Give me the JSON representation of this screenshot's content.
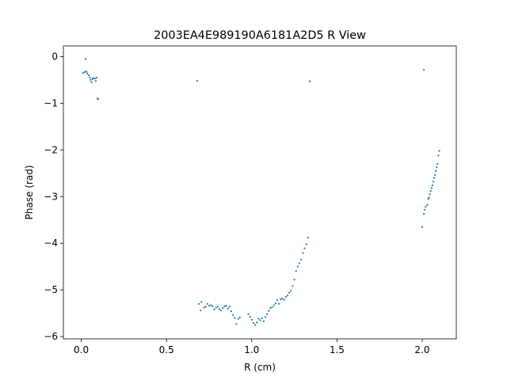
{
  "chart_data": {
    "type": "scatter",
    "title": "2003EA4E989190A6181A2D5 R View",
    "xlabel": "R (cm)",
    "ylabel": "Phase (rad)",
    "xlim": [
      -0.105,
      2.2
    ],
    "ylim": [
      -6.05,
      0.23
    ],
    "xticks": [
      0.0,
      0.5,
      1.0,
      1.5,
      2.0
    ],
    "xtick_labels": [
      "0.0",
      "0.5",
      "1.0",
      "1.5",
      "2.0"
    ],
    "yticks": [
      0,
      -1,
      -2,
      -3,
      -4,
      -5,
      -6
    ],
    "ytick_labels": [
      "0",
      "−1",
      "−2",
      "−3",
      "−4",
      "−5",
      "−6"
    ],
    "grid": false,
    "marker_color": "#1f77b4",
    "series": [
      {
        "points": [
          [
            0.01,
            -0.35
          ],
          [
            0.02,
            -0.33
          ],
          [
            0.025,
            -0.05
          ],
          [
            0.03,
            -0.32
          ],
          [
            0.035,
            -0.36
          ],
          [
            0.045,
            -0.4
          ],
          [
            0.05,
            -0.45
          ],
          [
            0.055,
            -0.5
          ],
          [
            0.06,
            -0.55
          ],
          [
            0.065,
            -0.48
          ],
          [
            0.07,
            -0.46
          ],
          [
            0.08,
            -0.47
          ],
          [
            0.085,
            -0.52
          ],
          [
            0.09,
            -0.45
          ],
          [
            0.095,
            -0.9
          ],
          [
            0.1,
            -0.91
          ],
          [
            0.68,
            -0.52
          ],
          [
            1.34,
            -0.53
          ],
          [
            2.01,
            -0.28
          ],
          [
            0.69,
            -5.3
          ],
          [
            0.7,
            -5.44
          ],
          [
            0.705,
            -5.26
          ],
          [
            0.72,
            -5.38
          ],
          [
            0.73,
            -5.36
          ],
          [
            0.74,
            -5.3
          ],
          [
            0.75,
            -5.34
          ],
          [
            0.76,
            -5.33
          ],
          [
            0.77,
            -5.35
          ],
          [
            0.78,
            -5.42
          ],
          [
            0.79,
            -5.38
          ],
          [
            0.8,
            -5.36
          ],
          [
            0.81,
            -5.41
          ],
          [
            0.82,
            -5.44
          ],
          [
            0.83,
            -5.39
          ],
          [
            0.84,
            -5.35
          ],
          [
            0.85,
            -5.34
          ],
          [
            0.86,
            -5.4
          ],
          [
            0.87,
            -5.36
          ],
          [
            0.88,
            -5.46
          ],
          [
            0.89,
            -5.54
          ],
          [
            0.9,
            -5.6
          ],
          [
            0.91,
            -5.73
          ],
          [
            0.92,
            -5.62
          ],
          [
            0.93,
            -5.59
          ],
          [
            0.98,
            -5.52
          ],
          [
            0.99,
            -5.58
          ],
          [
            1.0,
            -5.64
          ],
          [
            1.01,
            -5.71
          ],
          [
            1.02,
            -5.75
          ],
          [
            1.03,
            -5.7
          ],
          [
            1.04,
            -5.62
          ],
          [
            1.05,
            -5.65
          ],
          [
            1.06,
            -5.61
          ],
          [
            1.07,
            -5.67
          ],
          [
            1.08,
            -5.58
          ],
          [
            1.09,
            -5.52
          ],
          [
            1.1,
            -5.45
          ],
          [
            1.11,
            -5.39
          ],
          [
            1.12,
            -5.37
          ],
          [
            1.13,
            -5.33
          ],
          [
            1.14,
            -5.29
          ],
          [
            1.15,
            -5.22
          ],
          [
            1.16,
            -5.3
          ],
          [
            1.17,
            -5.2
          ],
          [
            1.18,
            -5.19
          ],
          [
            1.19,
            -5.21
          ],
          [
            1.2,
            -5.15
          ],
          [
            1.21,
            -5.12
          ],
          [
            1.22,
            -5.06
          ],
          [
            1.23,
            -5.02
          ],
          [
            1.24,
            -4.92
          ],
          [
            1.25,
            -4.78
          ],
          [
            1.26,
            -4.6
          ],
          [
            1.27,
            -4.5
          ],
          [
            1.28,
            -4.43
          ],
          [
            1.29,
            -4.35
          ],
          [
            1.3,
            -4.21
          ],
          [
            1.31,
            -4.11
          ],
          [
            1.32,
            -4.02
          ],
          [
            1.33,
            -3.88
          ],
          [
            2.0,
            -3.65
          ],
          [
            2.01,
            -3.37
          ],
          [
            2.015,
            -3.28
          ],
          [
            2.02,
            -3.22
          ],
          [
            2.03,
            -3.18
          ],
          [
            2.035,
            -3.05
          ],
          [
            2.04,
            -3.02
          ],
          [
            2.045,
            -2.95
          ],
          [
            2.05,
            -2.88
          ],
          [
            2.055,
            -2.82
          ],
          [
            2.06,
            -2.76
          ],
          [
            2.065,
            -2.68
          ],
          [
            2.07,
            -2.6
          ],
          [
            2.075,
            -2.54
          ],
          [
            2.08,
            -2.45
          ],
          [
            2.085,
            -2.37
          ],
          [
            2.09,
            -2.3
          ],
          [
            2.095,
            -2.12
          ],
          [
            2.1,
            -2.02
          ]
        ]
      }
    ]
  }
}
